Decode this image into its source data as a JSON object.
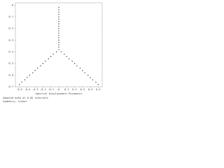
{
  "chart_data": {
    "type": "scatter",
    "x_label": "Spectral Displacement Parameter",
    "notes": [
      "Sampled data at 0.05 intervals",
      "Symmetry: linear"
    ],
    "xlim": [
      -0.55,
      0.55
    ],
    "ylim": [
      -0.7,
      0.02
    ],
    "xticks": [
      -0.5,
      -0.4,
      -0.3,
      -0.2,
      -0.1,
      0,
      0.1,
      0.2,
      0.3,
      0.4,
      0.5
    ],
    "yticks": [
      0,
      -0.1,
      -0.2,
      -0.3,
      -0.4,
      -0.5,
      -0.6,
      -0.7
    ],
    "grid": true,
    "series": [
      {
        "color": "#333333",
        "x": [
          0,
          0,
          0,
          0,
          0,
          0,
          0,
          0,
          0,
          0,
          0,
          0,
          0,
          0,
          0,
          0,
          0,
          0,
          0,
          -0.03,
          -0.07,
          -0.1,
          -0.13,
          -0.17,
          -0.2,
          -0.23,
          -0.27,
          -0.3,
          -0.33,
          -0.37,
          -0.4,
          -0.43,
          -0.47,
          -0.5,
          0.03,
          0.07,
          0.1,
          0.13,
          0.17,
          0.2,
          0.23,
          0.27,
          0.3,
          0.33,
          0.37,
          0.4,
          0.43,
          0.47,
          0.5
        ],
        "y": [
          -0.02,
          -0.04,
          -0.06,
          -0.08,
          -0.1,
          -0.12,
          -0.14,
          -0.16,
          -0.18,
          -0.2,
          -0.22,
          -0.24,
          -0.26,
          -0.28,
          -0.3,
          -0.32,
          -0.34,
          -0.36,
          -0.38,
          -0.4,
          -0.42,
          -0.44,
          -0.46,
          -0.48,
          -0.5,
          -0.52,
          -0.54,
          -0.56,
          -0.58,
          -0.6,
          -0.62,
          -0.64,
          -0.66,
          -0.68,
          -0.4,
          -0.42,
          -0.44,
          -0.46,
          -0.48,
          -0.5,
          -0.52,
          -0.54,
          -0.56,
          -0.58,
          -0.6,
          -0.62,
          -0.64,
          -0.66,
          -0.68
        ]
      }
    ]
  }
}
